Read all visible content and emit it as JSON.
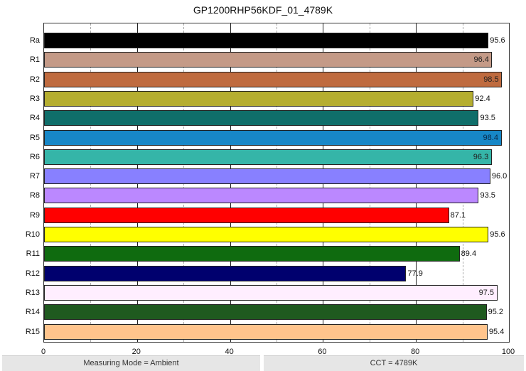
{
  "chart_data": {
    "type": "bar",
    "orientation": "horizontal",
    "title": "GP1200RHP56KDF_01_4789K",
    "xlabel": "",
    "ylabel": "",
    "xlim": [
      0,
      100
    ],
    "x_ticks": [
      0,
      20,
      40,
      60,
      80,
      100
    ],
    "minor_grid": [
      10,
      30,
      50,
      70,
      90
    ],
    "grid": true,
    "categories": [
      "Ra",
      "R1",
      "R2",
      "R3",
      "R4",
      "R5",
      "R6",
      "R7",
      "R8",
      "R9",
      "R10",
      "R11",
      "R12",
      "R13",
      "R14",
      "R15"
    ],
    "values": [
      95.6,
      96.4,
      98.5,
      92.4,
      93.5,
      98.4,
      96.3,
      96.0,
      93.5,
      87.1,
      95.6,
      89.4,
      77.9,
      97.5,
      95.2,
      95.4
    ],
    "labels": [
      "95.6",
      "96.4",
      "98.5",
      "92.4",
      "93.5",
      "98.4",
      "96.3",
      "96.0",
      "93.5",
      "87.1",
      "95.6",
      "89.4",
      "77.9",
      "97.5",
      "95.2",
      "95.4"
    ],
    "label_inside": [
      false,
      true,
      true,
      false,
      false,
      true,
      true,
      false,
      false,
      false,
      false,
      false,
      false,
      true,
      false,
      false
    ],
    "colors": [
      "#000000",
      "#c49a87",
      "#bf6b3f",
      "#b5ae30",
      "#0f6e6a",
      "#1787c7",
      "#35b5a8",
      "#8880ff",
      "#bb88ff",
      "#ff0000",
      "#ffff00",
      "#0f6b0f",
      "#00006e",
      "#ffeeff",
      "#1f5a1f",
      "#ffc48c"
    ]
  },
  "footer": {
    "left": "Measuring Mode = Ambient",
    "right": "CCT = 4789K"
  }
}
